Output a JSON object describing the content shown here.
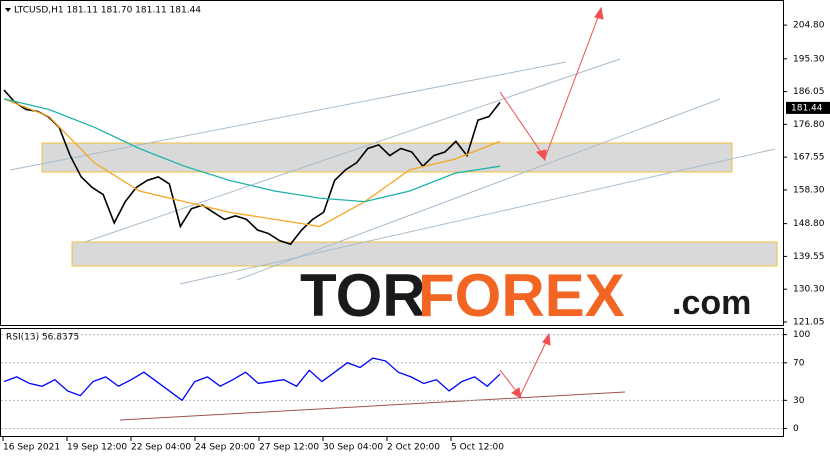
{
  "chart_data": [
    {
      "type": "line",
      "title": "LTCUSD,H1  181.11 181.70 181.11 181.44",
      "ylim": [
        120.2,
        211.6
      ],
      "yticks": [
        {
          "value": 204.8,
          "label": "204.80"
        },
        {
          "value": 195.3,
          "label": "195.30"
        },
        186.05,
        {
          "value": 176.8,
          "label": "176.80"
        },
        167.55,
        {
          "value": 158.3,
          "label": "158.30"
        },
        {
          "value": 148.8,
          "label": "148.80"
        },
        139.55,
        {
          "value": 130.3,
          "label": "130.30"
        },
        121.05
      ],
      "last_price": 181.44,
      "series": [
        {
          "color": "#000000",
          "values": [
            186.5,
            183,
            181,
            180.5,
            179,
            176,
            168,
            162,
            159,
            157,
            149,
            155,
            159,
            161,
            162,
            160,
            148,
            153,
            154,
            152,
            150,
            151,
            150,
            147,
            146,
            144,
            143,
            147,
            150,
            152,
            161,
            164,
            166,
            170,
            171,
            168,
            170,
            169,
            165,
            168,
            169,
            172,
            168,
            178,
            179,
            183
          ]
        },
        {
          "color": "#f5a623",
          "values": [
            184,
            179,
            166,
            158,
            155,
            152,
            150,
            148,
            155,
            164,
            167,
            172
          ]
        },
        {
          "color": "#20b2aa",
          "values": [
            184,
            181,
            176,
            170,
            165,
            161,
            158,
            156,
            155,
            158,
            163,
            165
          ]
        }
      ]
    },
    {
      "type": "line",
      "title": "RSI(13) 56.8375",
      "ylim": [
        -8,
        106
      ],
      "yticks": [
        100,
        70,
        30,
        0
      ],
      "series": [
        {
          "color": "#0000ff",
          "values": [
            50,
            55,
            48,
            45,
            52,
            40,
            35,
            50,
            55,
            45,
            52,
            60,
            50,
            40,
            30,
            50,
            55,
            45,
            52,
            60,
            48,
            50,
            52,
            45,
            62,
            50,
            60,
            70,
            65,
            75,
            72,
            60,
            55,
            48,
            52,
            40,
            50,
            55,
            45,
            58
          ]
        }
      ]
    }
  ],
  "time_axis": [
    "16 Sep 2021",
    "19 Sep 12:00",
    "22 Sep 04:00",
    "24 Sep 20:00",
    "27 Sep 12:00",
    "30 Sep 04:00",
    "2 Oct 20:00",
    "5 Oct 12:00"
  ],
  "watermark": {
    "tor": "TOR",
    "forex": "FOREX",
    "com": ".com"
  }
}
